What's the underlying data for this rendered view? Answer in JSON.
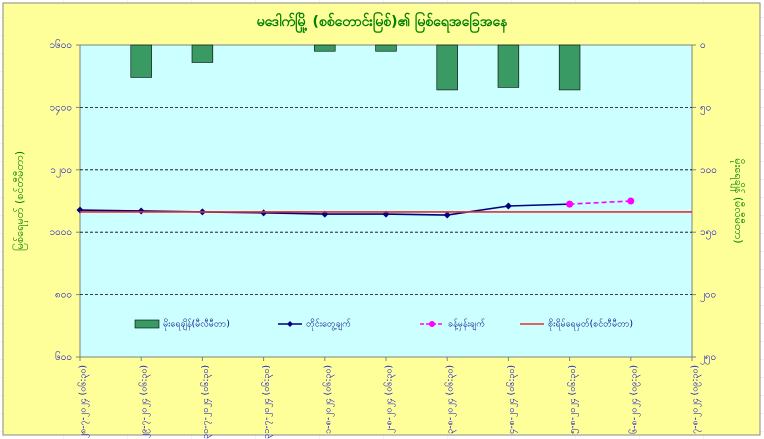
{
  "chart_data": {
    "type": "bar-line",
    "title": "မဒေါက်မြို့ (စစ်တောင်းမြစ်)၏ မြစ်ရေအခြေအနေ",
    "ylabel": "မြစ်ရေမှတ် (စင်တီမီတာ)",
    "y2label": "မိုးရေချိန် (မီလီမီတာ)",
    "categories": [
      "၂၈-၇-၂၀၂၄ (၀၆:၃၀)",
      "၂၉-၇-၂၀၂၄ (၀၆:၃၀)",
      "၃၀-၇-၂၀၂၄ (၀၆:၃၀)",
      "၃၁-၇-၂၀၂၄ (၀၆:၃၀)",
      "၁-၈-၂၀၂၄ (၀၆:၃၀)",
      "၂-၈-၂၀၂၄ (၀၆:၃၀)",
      "၃-၈-၂၀၂၄ (၀၆:၃၀)",
      "၄-၈-၂၀၂၄ (၀၆:၃၀)",
      "၅-၈-၂၀၂၄ (၀၆:၃၀)",
      "၆-၈-၂၀၂၄ (၀၉:၃၀)",
      "၇-၈-၂၀၂၄ (၀၉:၃၀)"
    ],
    "ylim": [
      600,
      1600
    ],
    "yticks": [
      {
        "value": 1600,
        "label": "၁၆၀၀"
      },
      {
        "value": 1400,
        "label": "၁၄၀၀"
      },
      {
        "value": 1200,
        "label": "၁၂၀၀"
      },
      {
        "value": 1000,
        "label": "၁၀၀၀"
      },
      {
        "value": 800,
        "label": "၈၀၀"
      },
      {
        "value": 600,
        "label": "၆၀၀"
      }
    ],
    "y2lim": [
      0,
      250
    ],
    "y2ticks": [
      {
        "value": 0,
        "label": "၀"
      },
      {
        "value": 50,
        "label": "၅၀"
      },
      {
        "value": 100,
        "label": "၁၀၀"
      },
      {
        "value": 150,
        "label": "၁၅၀"
      },
      {
        "value": 200,
        "label": "၂၀၀"
      },
      {
        "value": 250,
        "label": "၂၅၀"
      }
    ],
    "y2_inverted": true,
    "grid": true,
    "series": [
      {
        "name": "မိုးရေချိန်(မီလီမီတာ)",
        "type": "bar",
        "axis": "y2",
        "color": "#3a9a64",
        "values": [
          0,
          26,
          14,
          0,
          5,
          5,
          36,
          34,
          36,
          null,
          null
        ]
      },
      {
        "name": "တိုင်းတွေ့ချက်",
        "type": "line",
        "color": "#000080",
        "marker": "diamond",
        "values": [
          1071,
          1068,
          1065,
          1062,
          1058,
          1058,
          1055,
          1084,
          1090,
          null,
          null
        ]
      },
      {
        "name": "ခန့်မှန်းချက်",
        "type": "line",
        "color": "#ff00ff",
        "marker": "circle",
        "dashed": true,
        "values": [
          null,
          null,
          null,
          null,
          null,
          null,
          null,
          null,
          1090,
          1100,
          null
        ]
      },
      {
        "name": "စိုးရိမ်ရေမှတ်(စင်တီမီတာ)",
        "type": "line",
        "color": "#e03030",
        "values": [
          1065,
          1065,
          1065,
          1065,
          1065,
          1065,
          1065,
          1065,
          1065,
          1065,
          1065
        ]
      }
    ]
  }
}
